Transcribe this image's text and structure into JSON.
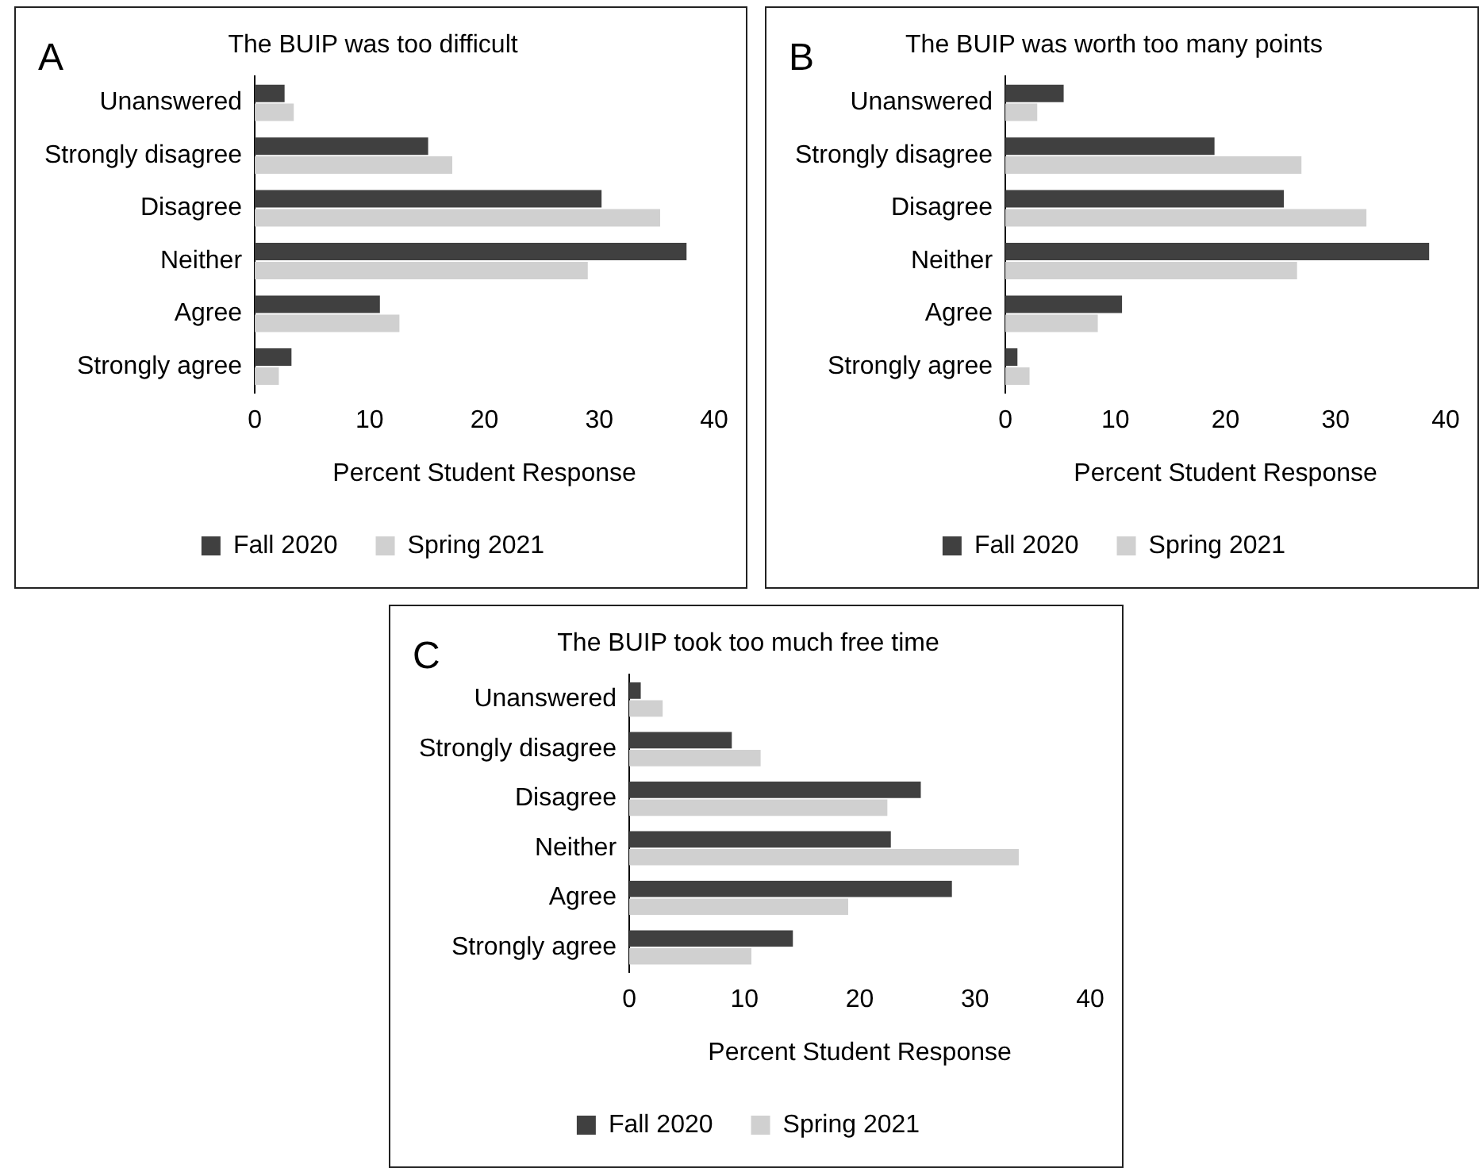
{
  "chart_data": [
    {
      "type": "bar",
      "orientation": "horizontal",
      "title": "The BUIP was too difficult",
      "annotations": [
        "A"
      ],
      "xlabel": "Percent Student Response",
      "categories": [
        "Unanswered",
        "Strongly disagree",
        "Disagree",
        "Neither",
        "Agree",
        "Strongly agree"
      ],
      "series": [
        {
          "name": "Fall 2020",
          "color": "#404040",
          "values": [
            2.6,
            15.1,
            30.2,
            37.6,
            10.9,
            3.2
          ]
        },
        {
          "name": "Spring 2021",
          "color": "#d0d0d0",
          "values": [
            3.4,
            17.2,
            35.3,
            29.0,
            12.6,
            2.1
          ]
        }
      ],
      "xlim": [
        0,
        40
      ],
      "xticks": [
        0,
        10,
        20,
        30,
        40
      ],
      "grid": false,
      "legend": "bottom"
    },
    {
      "type": "bar",
      "orientation": "horizontal",
      "title": "The BUIP was worth too many points",
      "annotations": [
        "B"
      ],
      "xlabel": "Percent Student Response",
      "categories": [
        "Unanswered",
        "Strongly disagree",
        "Disagree",
        "Neither",
        "Agree",
        "Strongly agree"
      ],
      "series": [
        {
          "name": "Fall 2020",
          "color": "#404040",
          "values": [
            5.3,
            19.0,
            25.3,
            38.5,
            10.6,
            1.1
          ]
        },
        {
          "name": "Spring 2021",
          "color": "#d0d0d0",
          "values": [
            2.9,
            26.9,
            32.8,
            26.5,
            8.4,
            2.2
          ]
        }
      ],
      "xlim": [
        0,
        40
      ],
      "xticks": [
        0,
        10,
        20,
        30,
        40
      ],
      "grid": false,
      "legend": "bottom"
    },
    {
      "type": "bar",
      "orientation": "horizontal",
      "title": "The BUIP took too much free time",
      "annotations": [
        "C"
      ],
      "xlabel": "Percent Student Response",
      "categories": [
        "Unanswered",
        "Strongly disagree",
        "Disagree",
        "Neither",
        "Agree",
        "Strongly agree"
      ],
      "series": [
        {
          "name": "Fall 2020",
          "color": "#404040",
          "values": [
            1.0,
            8.9,
            25.3,
            22.7,
            28.0,
            14.2
          ]
        },
        {
          "name": "Spring 2021",
          "color": "#d0d0d0",
          "values": [
            2.9,
            11.4,
            22.4,
            33.8,
            19.0,
            10.6
          ]
        }
      ],
      "xlim": [
        0,
        40
      ],
      "xticks": [
        0,
        10,
        20,
        30,
        40
      ],
      "grid": false,
      "legend": "bottom"
    }
  ]
}
